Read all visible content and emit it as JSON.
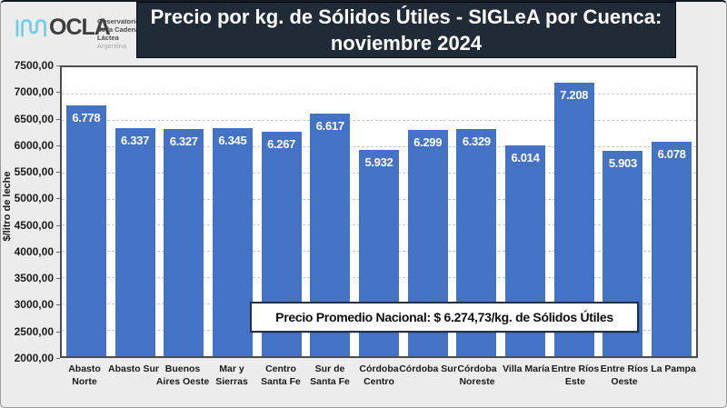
{
  "header": {
    "logo": {
      "name": "OCLA",
      "org_line1": "Observatorio",
      "org_line2": "de la Cadena Láctea",
      "org_line3": "Argentina",
      "icon": "milk-wave-icon",
      "icon_color": "#6fcbe8"
    },
    "title": "Precio por kg. de Sólidos Útiles - SIGLeA por Cuenca: noviembre 2024",
    "title_bg": "#212b38"
  },
  "chart_data": {
    "type": "bar",
    "title": "Precio por kg. de Sólidos Útiles - SIGLeA por Cuenca: noviembre 2024",
    "xlabel": "",
    "ylabel": "$/litro de leche",
    "ylim": [
      2000,
      7500
    ],
    "ytick_step": 500,
    "ytick_labels": [
      "7500,00",
      "7000,00",
      "6500,00",
      "6000,00",
      "5500,00",
      "5000,00",
      "4500,00",
      "4000,00",
      "3500,00",
      "3000,00",
      "2500,00",
      "2000,00"
    ],
    "grid": "horizontal-dashed",
    "legend": "none",
    "bar_color": "#4472c4",
    "categories": [
      "Abasto Norte",
      "Abasto Sur",
      "Buenos Aires Oeste",
      "Mar y Sierras",
      "Centro Santa Fe",
      "Sur de Santa Fe",
      "Córdoba Centro",
      "Córdoba Sur",
      "Córdoba Noreste",
      "Villa María",
      "Entre Ríos Este",
      "Entre Ríos Oeste",
      "La Pampa"
    ],
    "values": [
      6778,
      6337,
      6327,
      6345,
      6267,
      6617,
      5932,
      6299,
      6329,
      6014,
      7208,
      5903,
      6078
    ],
    "value_labels": [
      "6.778",
      "6.337",
      "6.327",
      "6.345",
      "6.267",
      "6.617",
      "5.932",
      "6.299",
      "6.329",
      "6.014",
      "7.208",
      "5.903",
      "6.078"
    ],
    "annotation": {
      "text": "Precio Promedio Nacional: $ 6.274,73/kg. de Sólidos Útiles",
      "value": 6274.73
    }
  }
}
